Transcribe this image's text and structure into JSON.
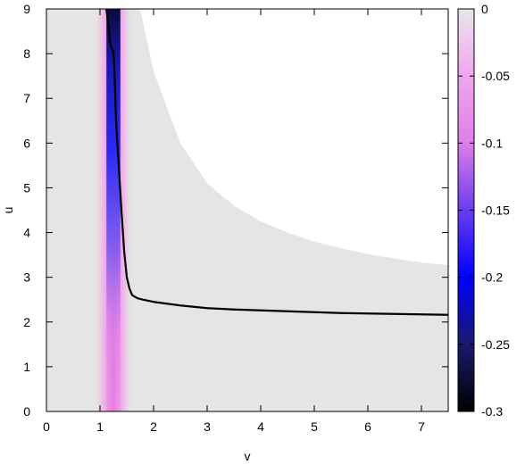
{
  "chart_data": {
    "type": "heatmap",
    "title": "",
    "xlabel": "v",
    "ylabel": "u",
    "xlim": [
      0,
      7.5
    ],
    "ylim": [
      0,
      9
    ],
    "x_ticks": [
      0,
      1,
      2,
      3,
      4,
      5,
      6,
      7
    ],
    "y_ticks": [
      0,
      1,
      2,
      3,
      4,
      5,
      6,
      7,
      8,
      9
    ],
    "grid": false,
    "colorbar": {
      "range": [
        -0.3,
        0
      ],
      "ticks": [
        0,
        -0.05,
        -0.1,
        -0.15,
        -0.2,
        -0.25,
        -0.3
      ],
      "tick_labels": [
        "0",
        "-0.05",
        "-0.1",
        "-0.15",
        "-0.2",
        "-0.25",
        "-0.3"
      ],
      "colors": [
        "#000000",
        "#1a1a6e",
        "#0000ff",
        "#6a3cf0",
        "#dd7ee8",
        "#efa6ee",
        "#eae6ea"
      ]
    },
    "background_region_color": "#e5e5e5",
    "heat_band": {
      "v_center": 1.25,
      "v_halfwidth": 0.32,
      "min_value_top": -0.3,
      "min_value_bottom": -0.09
    },
    "boundary_curve": {
      "v": [
        1.75,
        2.0,
        2.5,
        3.0,
        3.5,
        4.0,
        4.5,
        5.0,
        5.5,
        6.0,
        6.5,
        7.0,
        7.5
      ],
      "u": [
        9.0,
        7.6,
        6.0,
        5.1,
        4.6,
        4.25,
        4.0,
        3.8,
        3.65,
        3.52,
        3.42,
        3.33,
        3.27
      ]
    },
    "series": [
      {
        "x": [
          1.12,
          1.15,
          1.17,
          1.18,
          1.2,
          1.22,
          1.25,
          1.27,
          1.3,
          1.35,
          1.4,
          1.45,
          1.5,
          1.55,
          1.6,
          1.7,
          1.8,
          2.0,
          2.5,
          3.0,
          3.5,
          4.0,
          4.5,
          5.0,
          5.5,
          6.0,
          6.5,
          7.0,
          7.5
        ],
        "y": [
          9.0,
          8.7,
          8.5,
          8.3,
          8.2,
          8.12,
          8.05,
          7.6,
          6.5,
          5.5,
          4.5,
          3.6,
          3.0,
          2.75,
          2.6,
          2.53,
          2.5,
          2.45,
          2.37,
          2.31,
          2.28,
          2.26,
          2.24,
          2.22,
          2.2,
          2.19,
          2.18,
          2.17,
          2.16
        ]
      }
    ]
  }
}
